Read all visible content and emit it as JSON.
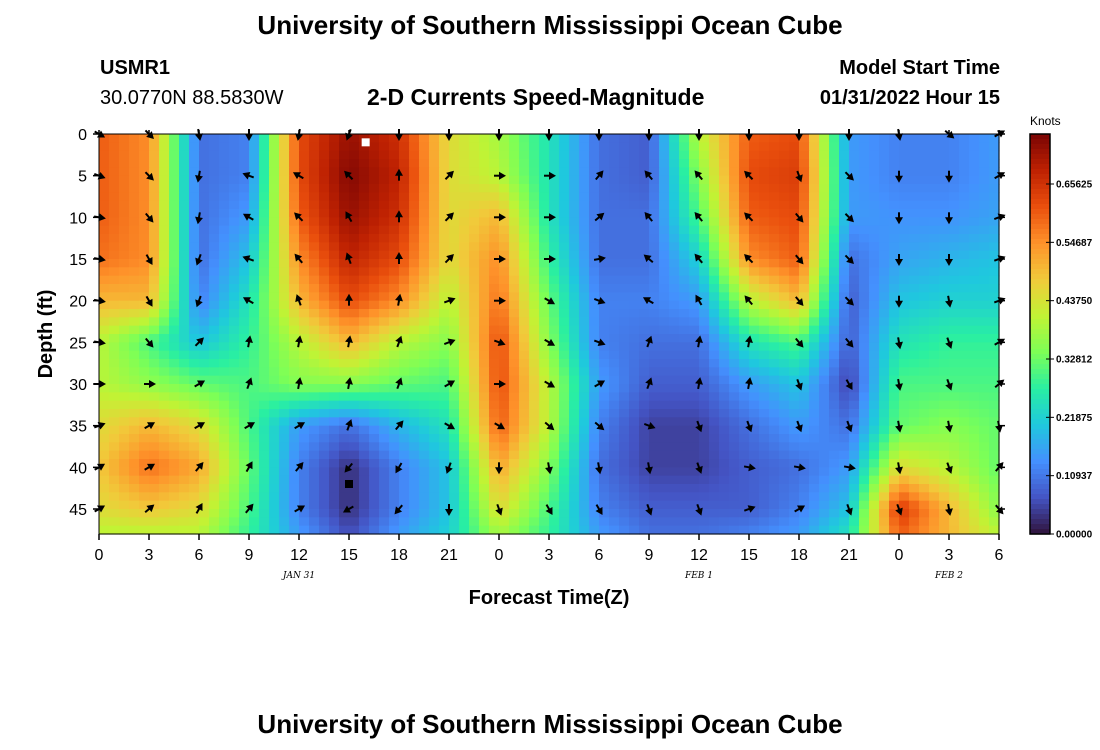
{
  "header": {
    "title": "University of Southern Mississippi Ocean Cube",
    "station_id": "USMR1",
    "coordinates": "30.0770N  88.5830W",
    "subtitle": "2-D Currents Speed-Magnitude",
    "model_start_label": "Model Start Time",
    "model_start_value": "01/31/2022 Hour 15"
  },
  "footer": {
    "title": "University of Southern Mississippi Ocean Cube"
  },
  "colors": {
    "background": "#ffffff",
    "text": "#000000",
    "arrow": "#000000",
    "colormap": [
      "#30123b",
      "#4454c4",
      "#4490fe",
      "#1fc8de",
      "#29efa2",
      "#7dff56",
      "#c1f334",
      "#f1ca3a",
      "#fe922a",
      "#ea4f0d",
      "#be2102",
      "#7a0403"
    ]
  },
  "chart_data": {
    "type": "heatmap",
    "title": "2-D Currents Speed-Magnitude",
    "xlabel": "Forecast Time(Z)",
    "ylabel": "Depth (ft)",
    "x_unit": "hours since 00Z Jan 31",
    "x_range": [
      0,
      54
    ],
    "x_ticks": [
      0,
      3,
      6,
      9,
      12,
      15,
      18,
      21,
      24,
      27,
      30,
      33,
      36,
      39,
      42,
      45,
      48,
      51,
      54
    ],
    "x_tick_labels": [
      "0",
      "3",
      "6",
      "9",
      "12",
      "15",
      "18",
      "21",
      "0",
      "3",
      "6",
      "9",
      "12",
      "15",
      "18",
      "21",
      "0",
      "3",
      "6"
    ],
    "date_labels": [
      {
        "hour": 12,
        "text": "JAN 31"
      },
      {
        "hour": 36,
        "text": "FEB 1"
      },
      {
        "hour": 51,
        "text": "FEB 2"
      }
    ],
    "y_unit": "ft",
    "y_range": [
      0,
      48
    ],
    "y_ticks": [
      0,
      5,
      10,
      15,
      20,
      25,
      30,
      35,
      40,
      45
    ],
    "colorbar": {
      "label": "Knots",
      "range": [
        0,
        0.75
      ],
      "ticks": [
        0.0,
        0.10937,
        0.21875,
        0.32812,
        0.4375,
        0.54687,
        0.65625
      ],
      "tick_labels": [
        "0.00000",
        "0.10937",
        "0.21875",
        "0.32812",
        "0.43750",
        "0.54687",
        "0.65625"
      ]
    },
    "grid_x_hours": [
      0,
      3,
      6,
      9,
      12,
      15,
      18,
      21,
      24,
      27,
      30,
      33,
      36,
      39,
      42,
      45,
      48,
      51,
      54
    ],
    "grid_y_depths": [
      0,
      5,
      10,
      15,
      20,
      25,
      30,
      35,
      40,
      45,
      48
    ],
    "speed_knots": [
      [
        0.6,
        0.55,
        0.1,
        0.12,
        0.62,
        0.72,
        0.66,
        0.45,
        0.38,
        0.25,
        0.1,
        0.08,
        0.4,
        0.6,
        0.62,
        0.15,
        0.12,
        0.12,
        0.15
      ],
      [
        0.6,
        0.55,
        0.1,
        0.12,
        0.62,
        0.74,
        0.68,
        0.45,
        0.4,
        0.25,
        0.1,
        0.08,
        0.35,
        0.62,
        0.64,
        0.15,
        0.12,
        0.12,
        0.15
      ],
      [
        0.6,
        0.55,
        0.1,
        0.15,
        0.6,
        0.72,
        0.66,
        0.45,
        0.5,
        0.25,
        0.1,
        0.1,
        0.3,
        0.6,
        0.62,
        0.15,
        0.14,
        0.14,
        0.16
      ],
      [
        0.58,
        0.55,
        0.1,
        0.2,
        0.55,
        0.68,
        0.62,
        0.45,
        0.55,
        0.28,
        0.1,
        0.1,
        0.22,
        0.55,
        0.6,
        0.1,
        0.16,
        0.18,
        0.2
      ],
      [
        0.5,
        0.5,
        0.12,
        0.25,
        0.5,
        0.62,
        0.55,
        0.4,
        0.58,
        0.32,
        0.12,
        0.12,
        0.15,
        0.4,
        0.5,
        0.08,
        0.2,
        0.22,
        0.22
      ],
      [
        0.4,
        0.3,
        0.2,
        0.28,
        0.4,
        0.5,
        0.4,
        0.35,
        0.62,
        0.35,
        0.12,
        0.1,
        0.1,
        0.25,
        0.3,
        0.08,
        0.25,
        0.28,
        0.28
      ],
      [
        0.4,
        0.36,
        0.32,
        0.3,
        0.35,
        0.35,
        0.32,
        0.3,
        0.62,
        0.4,
        0.15,
        0.08,
        0.08,
        0.15,
        0.2,
        0.05,
        0.3,
        0.3,
        0.3
      ],
      [
        0.45,
        0.5,
        0.45,
        0.3,
        0.15,
        0.1,
        0.18,
        0.25,
        0.6,
        0.4,
        0.12,
        0.05,
        0.05,
        0.1,
        0.15,
        0.1,
        0.32,
        0.35,
        0.32
      ],
      [
        0.48,
        0.58,
        0.52,
        0.32,
        0.12,
        0.03,
        0.12,
        0.2,
        0.52,
        0.35,
        0.1,
        0.05,
        0.05,
        0.08,
        0.1,
        0.15,
        0.45,
        0.4,
        0.32
      ],
      [
        0.45,
        0.48,
        0.45,
        0.3,
        0.12,
        0.03,
        0.12,
        0.2,
        0.45,
        0.3,
        0.12,
        0.08,
        0.08,
        0.08,
        0.12,
        0.2,
        0.65,
        0.5,
        0.35
      ],
      [
        0.4,
        0.4,
        0.4,
        0.28,
        0.15,
        0.06,
        0.15,
        0.22,
        0.38,
        0.28,
        0.15,
        0.1,
        0.1,
        0.12,
        0.15,
        0.25,
        0.6,
        0.5,
        0.4
      ]
    ],
    "arrow_depths": [
      0,
      5,
      10,
      15,
      20,
      25,
      30,
      35,
      40,
      45
    ],
    "arrow_direction_deg": [
      [
        120,
        135,
        170,
        180,
        190,
        200,
        180,
        180,
        180,
        180,
        180,
        180,
        180,
        180,
        180,
        180,
        170,
        130,
        60
      ],
      [
        110,
        135,
        190,
        290,
        300,
        315,
        0,
        45,
        90,
        90,
        40,
        320,
        320,
        315,
        160,
        135,
        180,
        180,
        60
      ],
      [
        100,
        140,
        190,
        300,
        315,
        330,
        0,
        45,
        90,
        90,
        50,
        320,
        320,
        315,
        140,
        135,
        180,
        180,
        70
      ],
      [
        100,
        150,
        200,
        290,
        320,
        340,
        0,
        45,
        90,
        90,
        80,
        310,
        320,
        315,
        140,
        135,
        180,
        180,
        70
      ],
      [
        100,
        150,
        200,
        300,
        340,
        0,
        10,
        70,
        90,
        120,
        110,
        300,
        330,
        320,
        140,
        135,
        180,
        170,
        70
      ],
      [
        100,
        140,
        45,
        10,
        10,
        10,
        20,
        70,
        110,
        120,
        110,
        20,
        10,
        10,
        140,
        140,
        170,
        160,
        60
      ],
      [
        90,
        90,
        60,
        20,
        10,
        10,
        20,
        60,
        90,
        120,
        60,
        20,
        10,
        10,
        160,
        150,
        170,
        160,
        50
      ],
      [
        70,
        60,
        60,
        60,
        60,
        20,
        40,
        120,
        120,
        130,
        130,
        110,
        160,
        160,
        160,
        160,
        170,
        170,
        170
      ],
      [
        60,
        60,
        40,
        30,
        40,
        220,
        210,
        200,
        180,
        170,
        170,
        170,
        160,
        100,
        100,
        100,
        170,
        160,
        40
      ],
      [
        60,
        50,
        30,
        40,
        60,
        240,
        220,
        180,
        160,
        150,
        150,
        160,
        160,
        70,
        60,
        160,
        160,
        170,
        140
      ]
    ],
    "markers": [
      {
        "name": "white-square",
        "hour": 16,
        "depth": 1
      },
      {
        "name": "black-square",
        "hour": 15,
        "depth": 42
      }
    ]
  }
}
